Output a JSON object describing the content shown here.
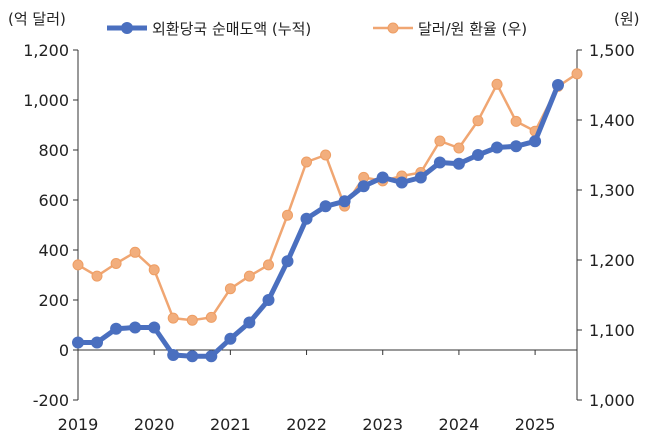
{
  "chart_data": {
    "type": "line",
    "title": "",
    "left_axis": {
      "unit_label": "(억 달러)",
      "ylim": [
        -200,
        1200
      ],
      "ticks": [
        -200,
        0,
        200,
        400,
        600,
        800,
        1000,
        1200
      ],
      "tick_labels": [
        "-200",
        "0",
        "200",
        "400",
        "600",
        "800",
        "1,000",
        "1,200"
      ]
    },
    "right_axis": {
      "unit_label": "(원)",
      "ylim": [
        1000,
        1500
      ],
      "ticks": [
        1000,
        1100,
        1200,
        1300,
        1400,
        1500
      ],
      "tick_labels": [
        "1,000",
        "1,100",
        "1,200",
        "1,300",
        "1,400",
        "1,500"
      ]
    },
    "x_axis": {
      "ticks": [
        2019,
        2020,
        2021,
        2022,
        2023,
        2024,
        2025
      ],
      "tick_labels": [
        "2019",
        "2020",
        "2021",
        "2022",
        "2023",
        "2024",
        "2025"
      ]
    },
    "legend_position": "top",
    "grid": false,
    "series": [
      {
        "name": "외환당국 순매도액 (누적)",
        "axis": "left",
        "color": "#4A6FBF",
        "points": [
          [
            2019.0,
            30
          ],
          [
            2019.25,
            30
          ],
          [
            2019.5,
            85
          ],
          [
            2019.75,
            90
          ],
          [
            2020.0,
            90
          ],
          [
            2020.25,
            -20
          ],
          [
            2020.5,
            -25
          ],
          [
            2020.75,
            -25
          ],
          [
            2021.0,
            45
          ],
          [
            2021.25,
            110
          ],
          [
            2021.5,
            200
          ],
          [
            2021.75,
            355
          ],
          [
            2022.0,
            525
          ],
          [
            2022.25,
            575
          ],
          [
            2022.5,
            595
          ],
          [
            2022.75,
            655
          ],
          [
            2023.0,
            690
          ],
          [
            2023.25,
            670
          ],
          [
            2023.5,
            690
          ],
          [
            2023.75,
            750
          ],
          [
            2024.0,
            745
          ],
          [
            2024.25,
            780
          ],
          [
            2024.5,
            810
          ],
          [
            2024.75,
            815
          ],
          [
            2025.0,
            835
          ],
          [
            2025.3,
            1060
          ]
        ]
      },
      {
        "name": "달러/원 환율 (우)",
        "axis": "right",
        "color": "#F0A672",
        "points": [
          [
            2019.0,
            1193
          ],
          [
            2019.25,
            1177
          ],
          [
            2019.5,
            1195
          ],
          [
            2019.75,
            1211
          ],
          [
            2020.0,
            1186
          ],
          [
            2020.25,
            1117
          ],
          [
            2020.5,
            1114
          ],
          [
            2020.75,
            1118
          ],
          [
            2021.0,
            1159
          ],
          [
            2021.25,
            1177
          ],
          [
            2021.5,
            1193
          ],
          [
            2021.75,
            1264
          ],
          [
            2022.0,
            1340
          ],
          [
            2022.25,
            1350
          ],
          [
            2022.5,
            1277
          ],
          [
            2022.75,
            1318
          ],
          [
            2023.0,
            1313
          ],
          [
            2023.25,
            1320
          ],
          [
            2023.5,
            1325
          ],
          [
            2023.75,
            1370
          ],
          [
            2024.0,
            1360
          ],
          [
            2024.25,
            1399
          ],
          [
            2024.5,
            1451
          ],
          [
            2024.75,
            1398
          ],
          [
            2025.0,
            1384
          ],
          [
            2025.3,
            1448
          ],
          [
            2025.55,
            1466
          ]
        ]
      }
    ]
  }
}
